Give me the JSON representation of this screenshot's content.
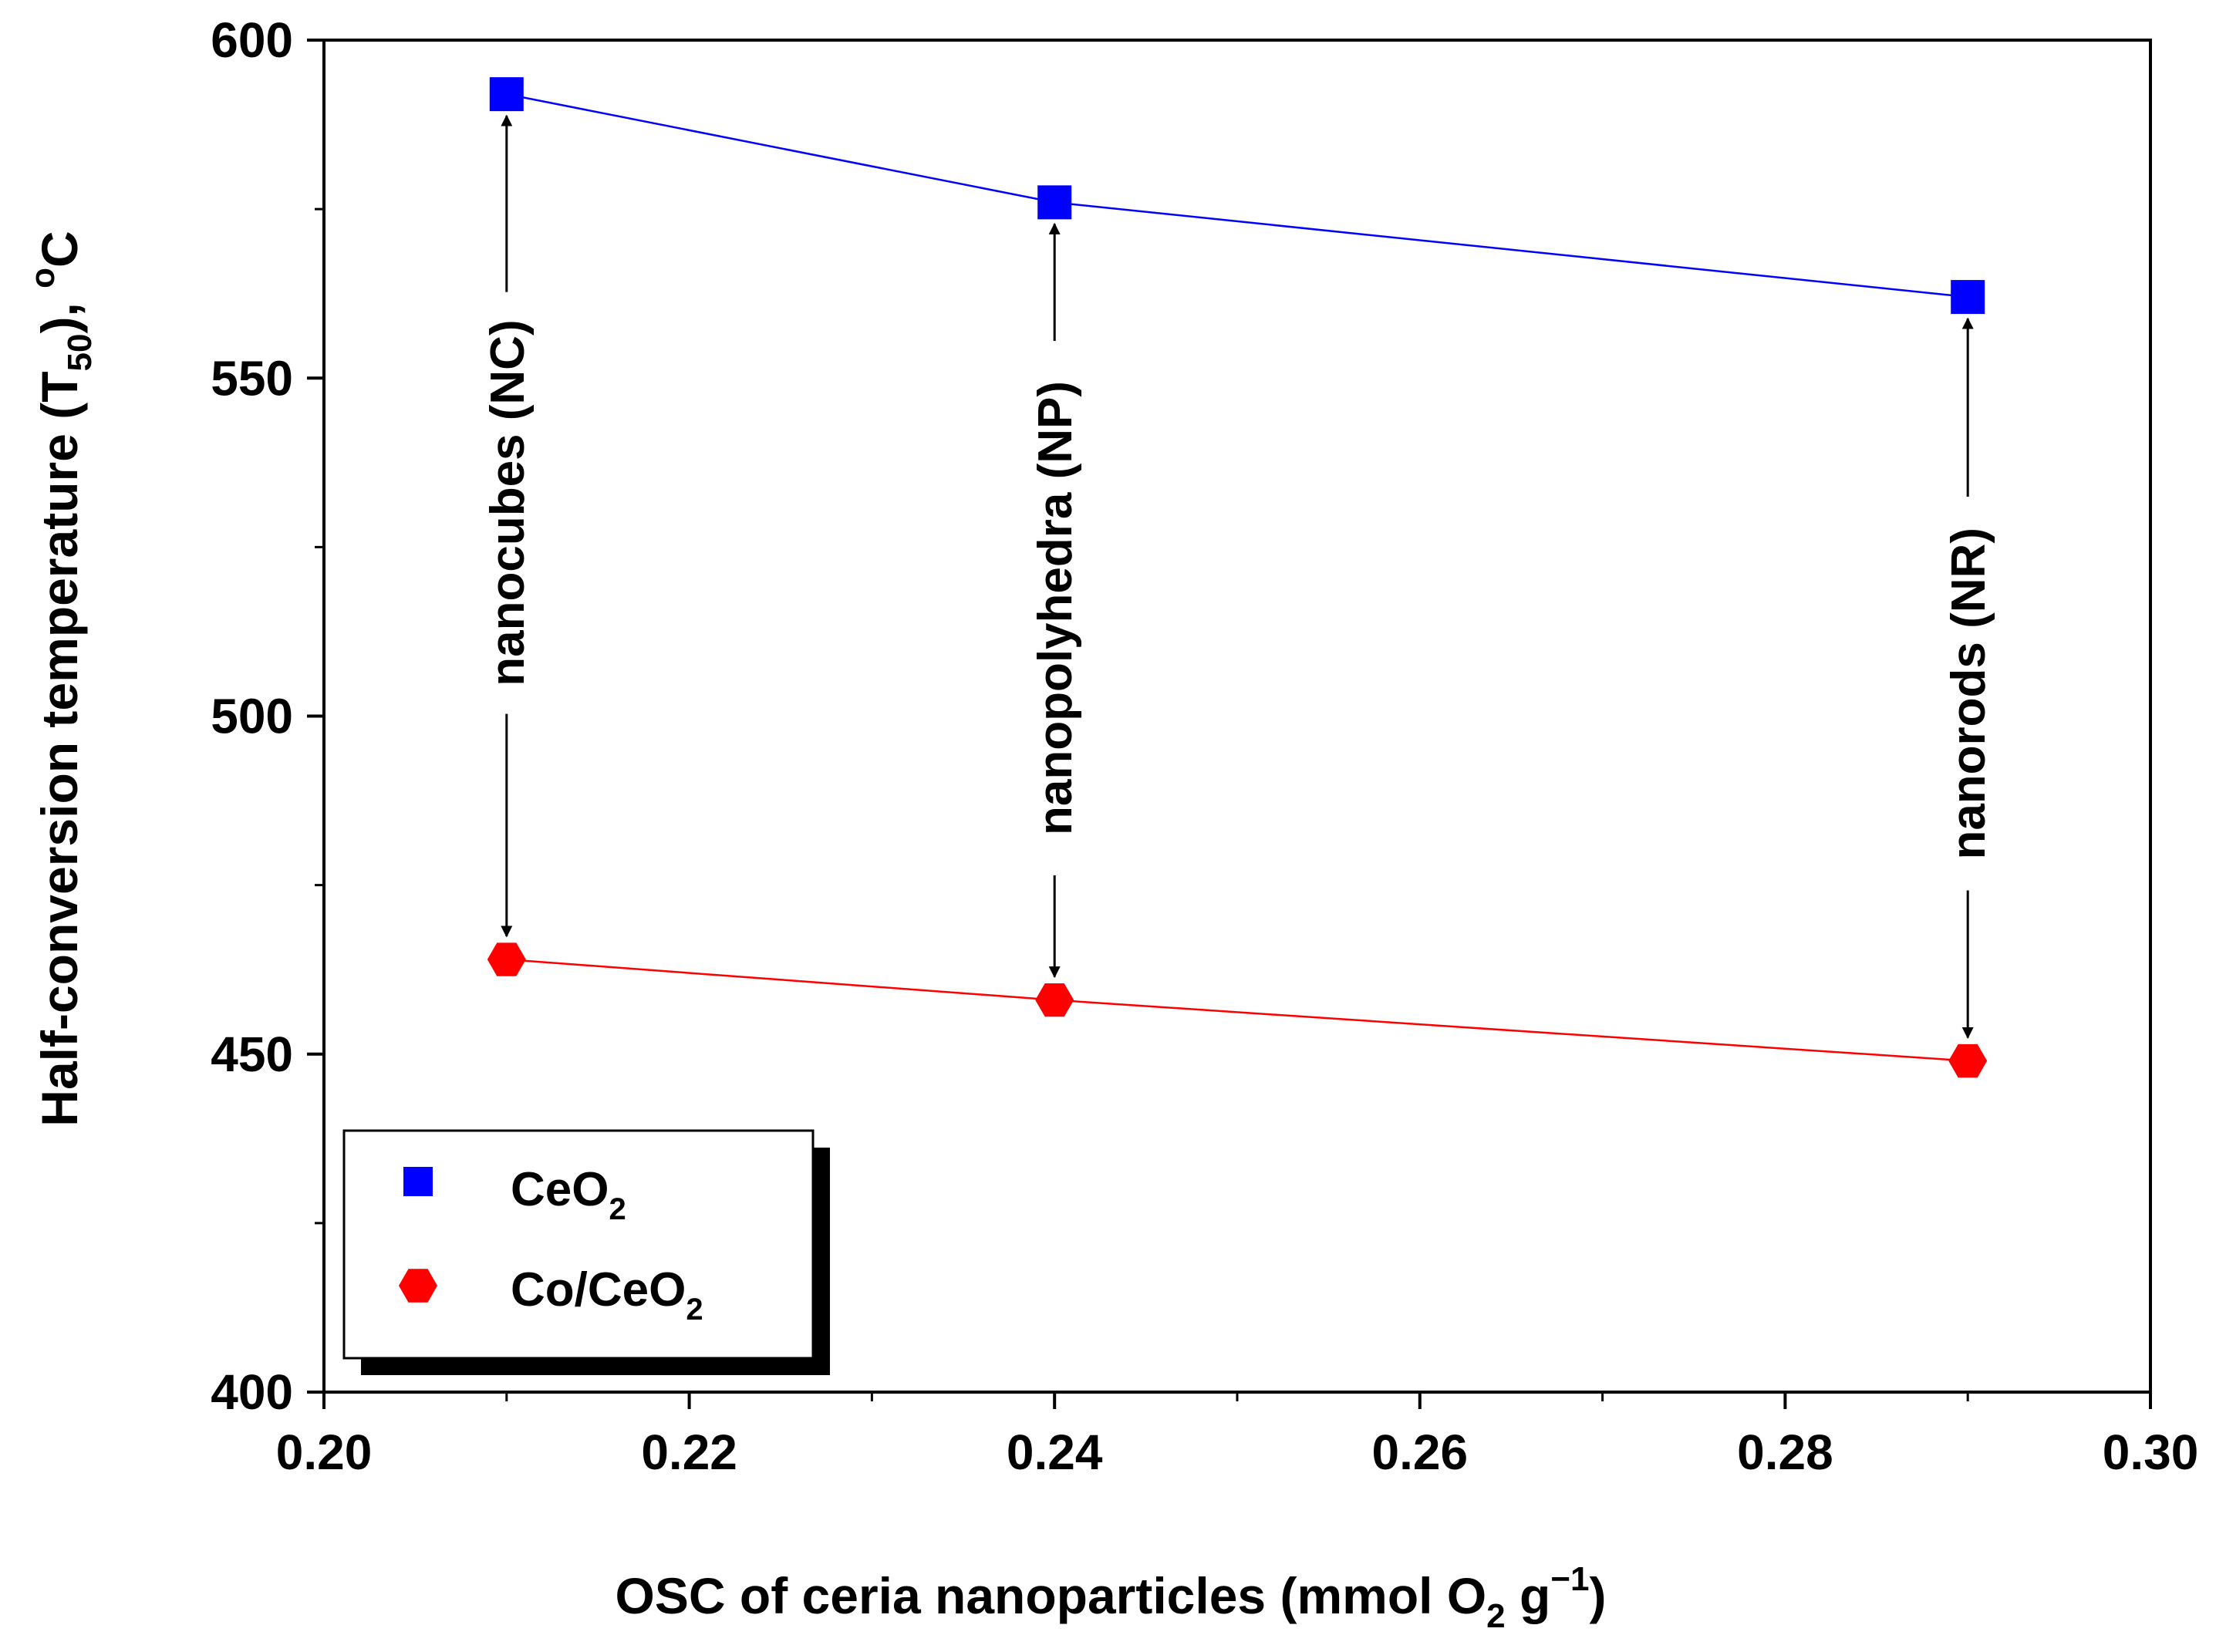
{
  "chart_data": {
    "type": "line",
    "title": "",
    "xlabel": "OSC of ceria nanoparticles (mmol O",
    "xlabel_sub": "2",
    "xlabel_tail": " g",
    "xlabel_sup": "−1",
    "xlabel_close": ")",
    "ylabel": "Half-conversion temperature (T",
    "ylabel_sub": "50",
    "ylabel_tail": "), ",
    "ylabel_sup": "o",
    "ylabel_unit": "C",
    "xlim": [
      0.2,
      0.3
    ],
    "ylim": [
      400,
      600
    ],
    "xticks": [
      "0.20",
      "0.22",
      "0.24",
      "0.26",
      "0.28",
      "0.30"
    ],
    "xtick_values": [
      0.2,
      0.22,
      0.24,
      0.26,
      0.28,
      0.3
    ],
    "yticks": [
      "400",
      "450",
      "500",
      "550",
      "600"
    ],
    "ytick_values": [
      400,
      450,
      500,
      550,
      600
    ],
    "x": [
      0.21,
      0.24,
      0.29
    ],
    "series": [
      {
        "name": "CeO",
        "name_sub": "2",
        "marker": "square",
        "color": "#0000ff",
        "line_color": "#0000ff",
        "values": [
          592,
          576,
          562
        ]
      },
      {
        "name": "Co/CeO",
        "name_sub": "2",
        "marker": "hexagon",
        "color": "#ff0000",
        "line_color": "#ff0000",
        "values": [
          464,
          458,
          449
        ]
      }
    ],
    "annotations": [
      {
        "text": "nanocubes (NC)",
        "x": 0.21
      },
      {
        "text": "nanopolyhedra (NP)",
        "x": 0.24
      },
      {
        "text": "nanorods (NR)",
        "x": 0.29
      }
    ],
    "legend_position": "bottom-left"
  }
}
